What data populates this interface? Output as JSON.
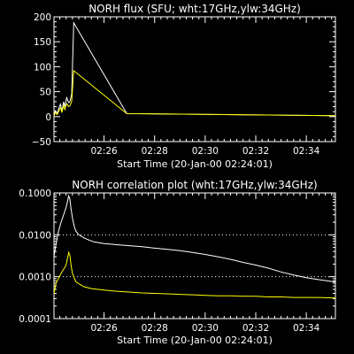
{
  "chart_data": [
    {
      "type": "line",
      "title": "NORH flux (SFU; wht:17GHz,ylw:34GHz)",
      "xlabel": "Start Time (20-Jan-00 02:24:01)",
      "ylabel": "",
      "xlim": [
        24.02,
        35.15
      ],
      "ylim": [
        -50,
        200
      ],
      "y_scale": "linear",
      "yticks": [
        -50,
        0,
        50,
        100,
        150,
        200
      ],
      "ytick_labels": [
        "−50",
        "0",
        "50",
        "100",
        "150",
        "200"
      ],
      "xticks": [
        26,
        28,
        30,
        32,
        34
      ],
      "xtick_labels": [
        "02:26",
        "02:28",
        "02:30",
        "02:32",
        "02:34"
      ],
      "series": [
        {
          "color": "#ffffff",
          "x": [
            24.02,
            24.08,
            24.15,
            24.22,
            24.28,
            24.33,
            24.4,
            24.45,
            24.52,
            24.6,
            24.65,
            24.72,
            24.8,
            26.9,
            35.15
          ],
          "y": [
            2,
            12,
            6,
            18,
            25,
            10,
            30,
            20,
            38,
            28,
            30,
            45,
            188,
            6,
            2
          ]
        },
        {
          "color": "#ffff00",
          "x": [
            24.02,
            24.08,
            24.15,
            24.22,
            24.28,
            24.33,
            24.4,
            24.45,
            24.52,
            24.6,
            24.65,
            24.72,
            24.8,
            26.9,
            35.15
          ],
          "y": [
            2,
            8,
            4,
            12,
            18,
            8,
            22,
            14,
            26,
            20,
            22,
            30,
            92,
            6,
            2
          ]
        }
      ]
    },
    {
      "type": "line",
      "title": "NORH correlation plot (wht:17GHz,ylw:34GHz)",
      "xlabel": "Start Time (20-Jan-00 02:24:01)",
      "ylabel": "",
      "xlim": [
        24.02,
        35.15
      ],
      "ylim": [
        0.0001,
        0.1
      ],
      "y_scale": "log",
      "yticks": [
        0.0001,
        0.001,
        0.01,
        0.1
      ],
      "ytick_labels": [
        "0.0001",
        "0.0010",
        "0.0100",
        "0.1000"
      ],
      "reference_lines": [
        0.01,
        0.001
      ],
      "xticks": [
        26,
        28,
        30,
        32,
        34
      ],
      "xtick_labels": [
        "02:26",
        "02:28",
        "02:30",
        "02:32",
        "02:34"
      ],
      "series": [
        {
          "color": "#ffffff",
          "x": [
            24.02,
            24.1,
            24.2,
            24.3,
            24.4,
            24.5,
            24.55,
            24.6,
            24.65,
            24.7,
            24.75,
            24.8,
            24.85,
            24.9,
            25.0,
            25.2,
            25.4,
            25.6,
            26.0,
            26.5,
            27.0,
            27.5,
            28.0,
            28.5,
            29.0,
            29.5,
            30.0,
            30.5,
            31.0,
            31.5,
            32.0,
            32.5,
            33.0,
            33.5,
            34.0,
            34.5,
            35.15
          ],
          "y": [
            0.003,
            0.006,
            0.012,
            0.02,
            0.03,
            0.045,
            0.06,
            0.085,
            0.07,
            0.04,
            0.025,
            0.018,
            0.014,
            0.012,
            0.01,
            0.0085,
            0.0075,
            0.0068,
            0.0062,
            0.0058,
            0.0055,
            0.0052,
            0.0048,
            0.0045,
            0.0042,
            0.0038,
            0.0034,
            0.003,
            0.0026,
            0.0022,
            0.0019,
            0.0016,
            0.0013,
            0.0011,
            0.00095,
            0.00085,
            0.00075
          ]
        },
        {
          "color": "#ffff00",
          "x": [
            24.02,
            24.1,
            24.2,
            24.3,
            24.4,
            24.5,
            24.55,
            24.6,
            24.65,
            24.7,
            24.75,
            24.8,
            24.85,
            24.9,
            25.0,
            25.2,
            25.5,
            26.0,
            26.5,
            27.0,
            27.5,
            28.0,
            28.5,
            29.0,
            29.5,
            30.0,
            30.5,
            31.0,
            31.5,
            32.0,
            32.5,
            33.0,
            33.5,
            34.0,
            34.5,
            35.15
          ],
          "y": [
            0.0004,
            0.0007,
            0.0009,
            0.0012,
            0.0015,
            0.0019,
            0.0026,
            0.0038,
            0.0032,
            0.0018,
            0.0012,
            0.001,
            0.00085,
            0.00075,
            0.00068,
            0.00058,
            0.00052,
            0.00048,
            0.00045,
            0.00043,
            0.00041,
            0.0004,
            0.00039,
            0.00038,
            0.00037,
            0.00036,
            0.00035,
            0.00035,
            0.00034,
            0.00034,
            0.00033,
            0.00033,
            0.00032,
            0.00032,
            0.00032,
            0.00031
          ]
        }
      ]
    }
  ]
}
